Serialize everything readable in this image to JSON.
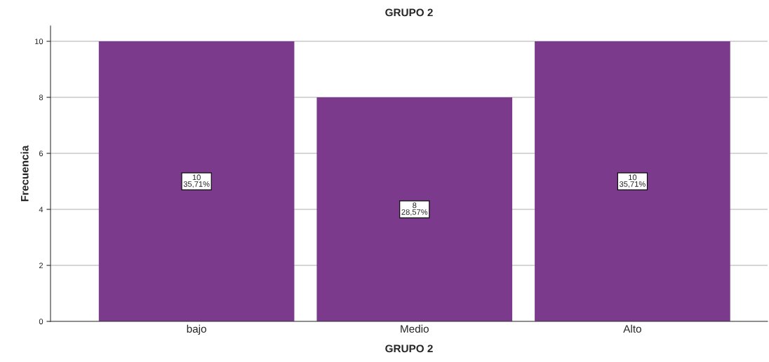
{
  "chart_data": {
    "type": "bar",
    "title": "GRUPO 2",
    "xlabel": "GRUPO 2",
    "ylabel": "Frecuencia",
    "categories": [
      "bajo",
      "Medio",
      "Alto"
    ],
    "values": [
      10,
      8,
      10
    ],
    "value_labels": [
      "10\n35,71%",
      "8\n28,57%",
      "10\n35,71%"
    ],
    "color": "#7b3a8c",
    "ylim": [
      0,
      10.55
    ],
    "yticks": [
      0,
      2,
      4,
      6,
      8,
      10
    ],
    "grid": "y",
    "legend": false
  }
}
